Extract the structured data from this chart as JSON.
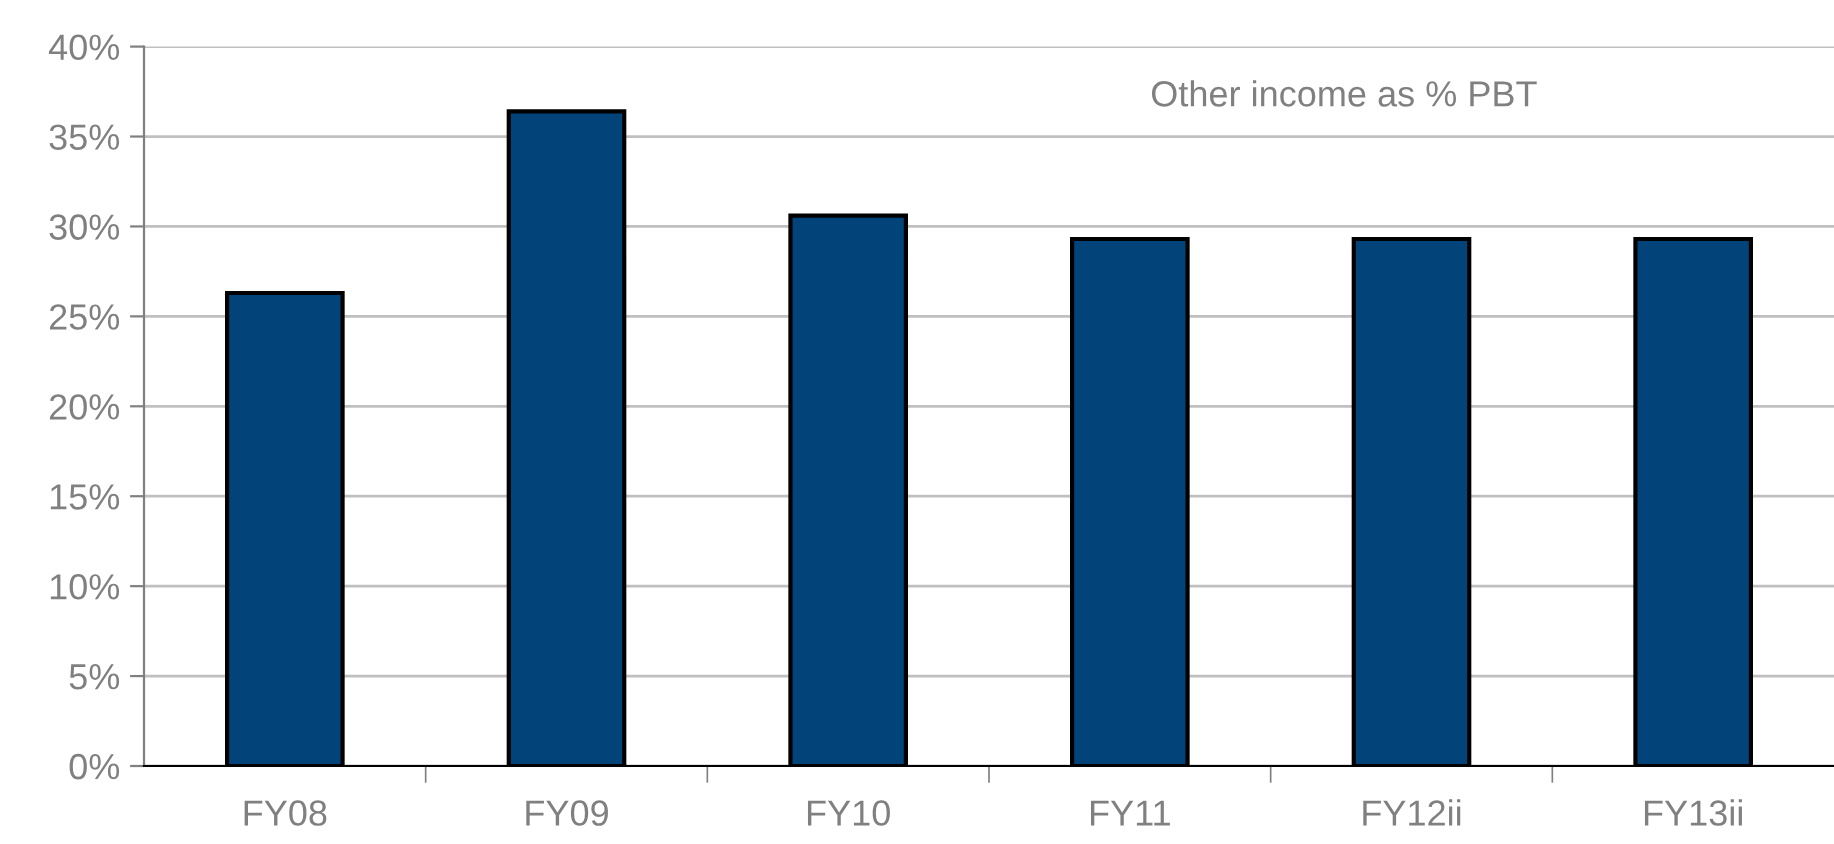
{
  "chart_data": {
    "type": "bar",
    "title": "Other income as % PBT",
    "categories": [
      "FY08",
      "FY09",
      "FY10",
      "FY11",
      "FY12ii",
      "FY13ii"
    ],
    "values": [
      26.3,
      36.4,
      30.6,
      29.3,
      29.3,
      29.3
    ],
    "color": "#02437a",
    "ylim": [
      0,
      40
    ],
    "yticks": [
      {
        "value": 0,
        "label": "0%"
      },
      {
        "value": 5,
        "label": "5%"
      },
      {
        "value": 10,
        "label": "10%"
      },
      {
        "value": 15,
        "label": "15%"
      },
      {
        "value": 20,
        "label": "20%"
      },
      {
        "value": 25,
        "label": "25%"
      },
      {
        "value": 30,
        "label": "30%"
      },
      {
        "value": 35,
        "label": "35%"
      },
      {
        "value": 40,
        "label": "40%"
      }
    ],
    "grid": "y"
  }
}
